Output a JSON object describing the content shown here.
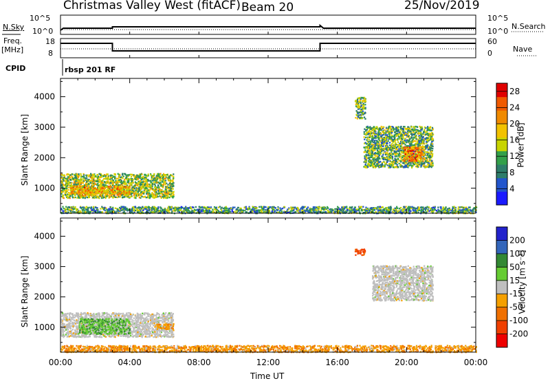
{
  "header": {
    "station": "Christmas Valley West (fitACF)",
    "beam": "Beam 20",
    "date": "25/Nov/2019"
  },
  "status_panels": {
    "nsky_label": "N.Sky",
    "nsearch_label": "N.Search",
    "nsky_ticks": [
      "10^5",
      "10^0"
    ],
    "nsearch_ticks": [
      "10^5",
      "10^0"
    ],
    "freq_label": "Freq.",
    "freq_unit": "[MHz]",
    "freq_ticks": [
      "18",
      "8"
    ],
    "nave_label": "Nave",
    "nave_ticks": [
      "60",
      "0"
    ],
    "cpid_label": "CPID",
    "cpid_value": "rbsp 201 RF"
  },
  "colors": {
    "power_scale": [
      "#1a1aff",
      "#2255cc",
      "#2e7d6a",
      "#33a04a",
      "#c8d400",
      "#f2c200",
      "#f08a00",
      "#f05a00",
      "#e00000"
    ],
    "velocity_scale": [
      "#ee0000",
      "#f04000",
      "#f07000",
      "#f5a000",
      "#bfbfbf",
      "#66cc33",
      "#338833",
      "#3366bb",
      "#2222cc"
    ],
    "ground_scatter": "#bfbfbf"
  },
  "chart_data": [
    {
      "type": "heatmap",
      "panel": "power",
      "ylabel": "Slant Range [km]",
      "yticks": [
        1000,
        2000,
        3000,
        4000
      ],
      "ylim": [
        180,
        4600
      ],
      "xlim": [
        0,
        24
      ],
      "colorbar_label": "Power [dB]",
      "colorbar_ticks": [
        "4",
        "8",
        "12",
        "16",
        "20",
        "24",
        "28"
      ],
      "colorbar_range": [
        0,
        30
      ],
      "regions": [
        {
          "t0": 0.0,
          "t1": 6.5,
          "r0": 700,
          "r1": 1500,
          "mean": 14
        },
        {
          "t0": 0.5,
          "t1": 4.0,
          "r0": 800,
          "r1": 1100,
          "mean": 20
        },
        {
          "t0": 0.0,
          "t1": 24.0,
          "r0": 200,
          "r1": 420,
          "mean": 10
        },
        {
          "t0": 17.5,
          "t1": 21.5,
          "r0": 1700,
          "r1": 3050,
          "mean": 12
        },
        {
          "t0": 19.8,
          "t1": 21.0,
          "r0": 1900,
          "r1": 2400,
          "mean": 22
        },
        {
          "t0": 17.0,
          "t1": 17.6,
          "r0": 3300,
          "r1": 4000,
          "mean": 12
        }
      ]
    },
    {
      "type": "heatmap",
      "panel": "velocity",
      "ylabel": "Slant Range [km]",
      "xlabel": "Time UT",
      "xticks": [
        "00:00",
        "04:00",
        "08:00",
        "12:00",
        "16:00",
        "20:00",
        "00:00"
      ],
      "yticks": [
        1000,
        2000,
        3000,
        4000
      ],
      "ylim": [
        180,
        4600
      ],
      "xlim": [
        0,
        24
      ],
      "colorbar_label": "Velocity [m s⁻¹]",
      "colorbar_ticks": [
        "200",
        "100",
        "50",
        "15",
        "-15",
        "-50",
        "-100",
        "-200"
      ],
      "regions": [
        {
          "t0": 0.0,
          "t1": 6.5,
          "r0": 700,
          "r1": 1500,
          "mean": -5,
          "ground": true
        },
        {
          "t0": 1.0,
          "t1": 4.0,
          "r0": 800,
          "r1": 1300,
          "mean": 40
        },
        {
          "t0": 5.5,
          "t1": 6.5,
          "r0": 950,
          "r1": 1150,
          "mean": -40
        },
        {
          "t0": 0.0,
          "t1": 24.0,
          "r0": 200,
          "r1": 420,
          "mean": -40
        },
        {
          "t0": 18.0,
          "t1": 21.5,
          "r0": 1900,
          "r1": 3050,
          "mean": 0,
          "ground": true
        },
        {
          "t0": 17.0,
          "t1": 17.6,
          "r0": 3400,
          "r1": 3600,
          "mean": -120
        }
      ]
    }
  ]
}
